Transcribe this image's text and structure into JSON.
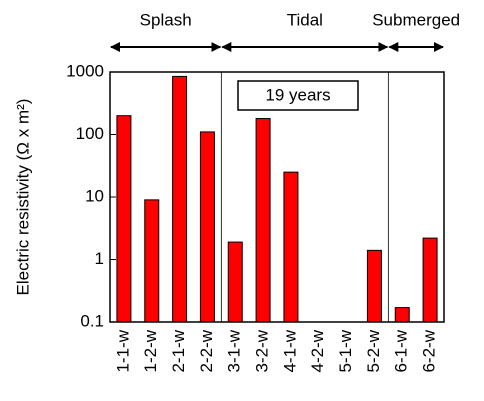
{
  "chart_data": {
    "type": "bar",
    "ylabel": "Electric resistivity (Ω x m²)",
    "categories": [
      "1-1-w",
      "1-2-w",
      "2-1-w",
      "2-2-w",
      "3-1-w",
      "3-2-w",
      "4-1-w",
      "4-2-w",
      "5-1-w",
      "5-2-w",
      "6-1-w",
      "6-2-w"
    ],
    "values": [
      200,
      9,
      850,
      110,
      1.9,
      180,
      25,
      null,
      null,
      1.4,
      0.17,
      2.2
    ],
    "color": "#ff0000",
    "ylim": [
      0.1,
      1000
    ],
    "yticks": [
      0.1,
      1,
      10,
      100,
      1000
    ],
    "log_scale": true,
    "annotations": [
      "19 years"
    ],
    "zones": [
      "Splash",
      "Tidal",
      "Submerged"
    ]
  }
}
